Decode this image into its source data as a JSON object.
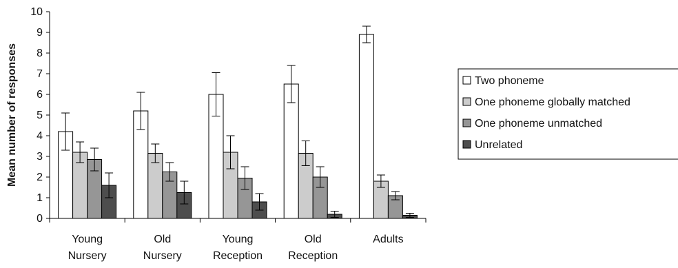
{
  "chart_data": {
    "type": "bar",
    "ylabel": "Mean number of responses",
    "xlabel": "",
    "ylim": [
      0,
      10
    ],
    "yticks": [
      0,
      1,
      2,
      3,
      4,
      5,
      6,
      7,
      8,
      9,
      10
    ],
    "grid": false,
    "legend_position": "right",
    "categories": [
      [
        "Young",
        "Nursery"
      ],
      [
        "Old",
        "Nursery"
      ],
      [
        "Young",
        "Reception"
      ],
      [
        "Old",
        "Reception"
      ],
      [
        "Adults"
      ]
    ],
    "series": [
      {
        "name": "Two phoneme",
        "color": "#ffffff",
        "values": [
          4.2,
          5.2,
          6.0,
          6.5,
          8.9
        ],
        "errors": [
          0.9,
          0.9,
          1.05,
          0.9,
          0.4
        ]
      },
      {
        "name": "One phoneme globally matched",
        "color": "#cccccc",
        "values": [
          3.2,
          3.15,
          3.2,
          3.15,
          1.8
        ],
        "errors": [
          0.5,
          0.45,
          0.8,
          0.6,
          0.3
        ]
      },
      {
        "name": "One phoneme unmatched",
        "color": "#969696",
        "values": [
          2.85,
          2.25,
          1.95,
          2.0,
          1.1
        ],
        "errors": [
          0.55,
          0.45,
          0.55,
          0.5,
          0.2
        ]
      },
      {
        "name": "Unrelated",
        "color": "#4d4d4d",
        "values": [
          1.6,
          1.25,
          0.8,
          0.2,
          0.15
        ],
        "errors": [
          0.6,
          0.55,
          0.4,
          0.15,
          0.1
        ]
      }
    ]
  }
}
